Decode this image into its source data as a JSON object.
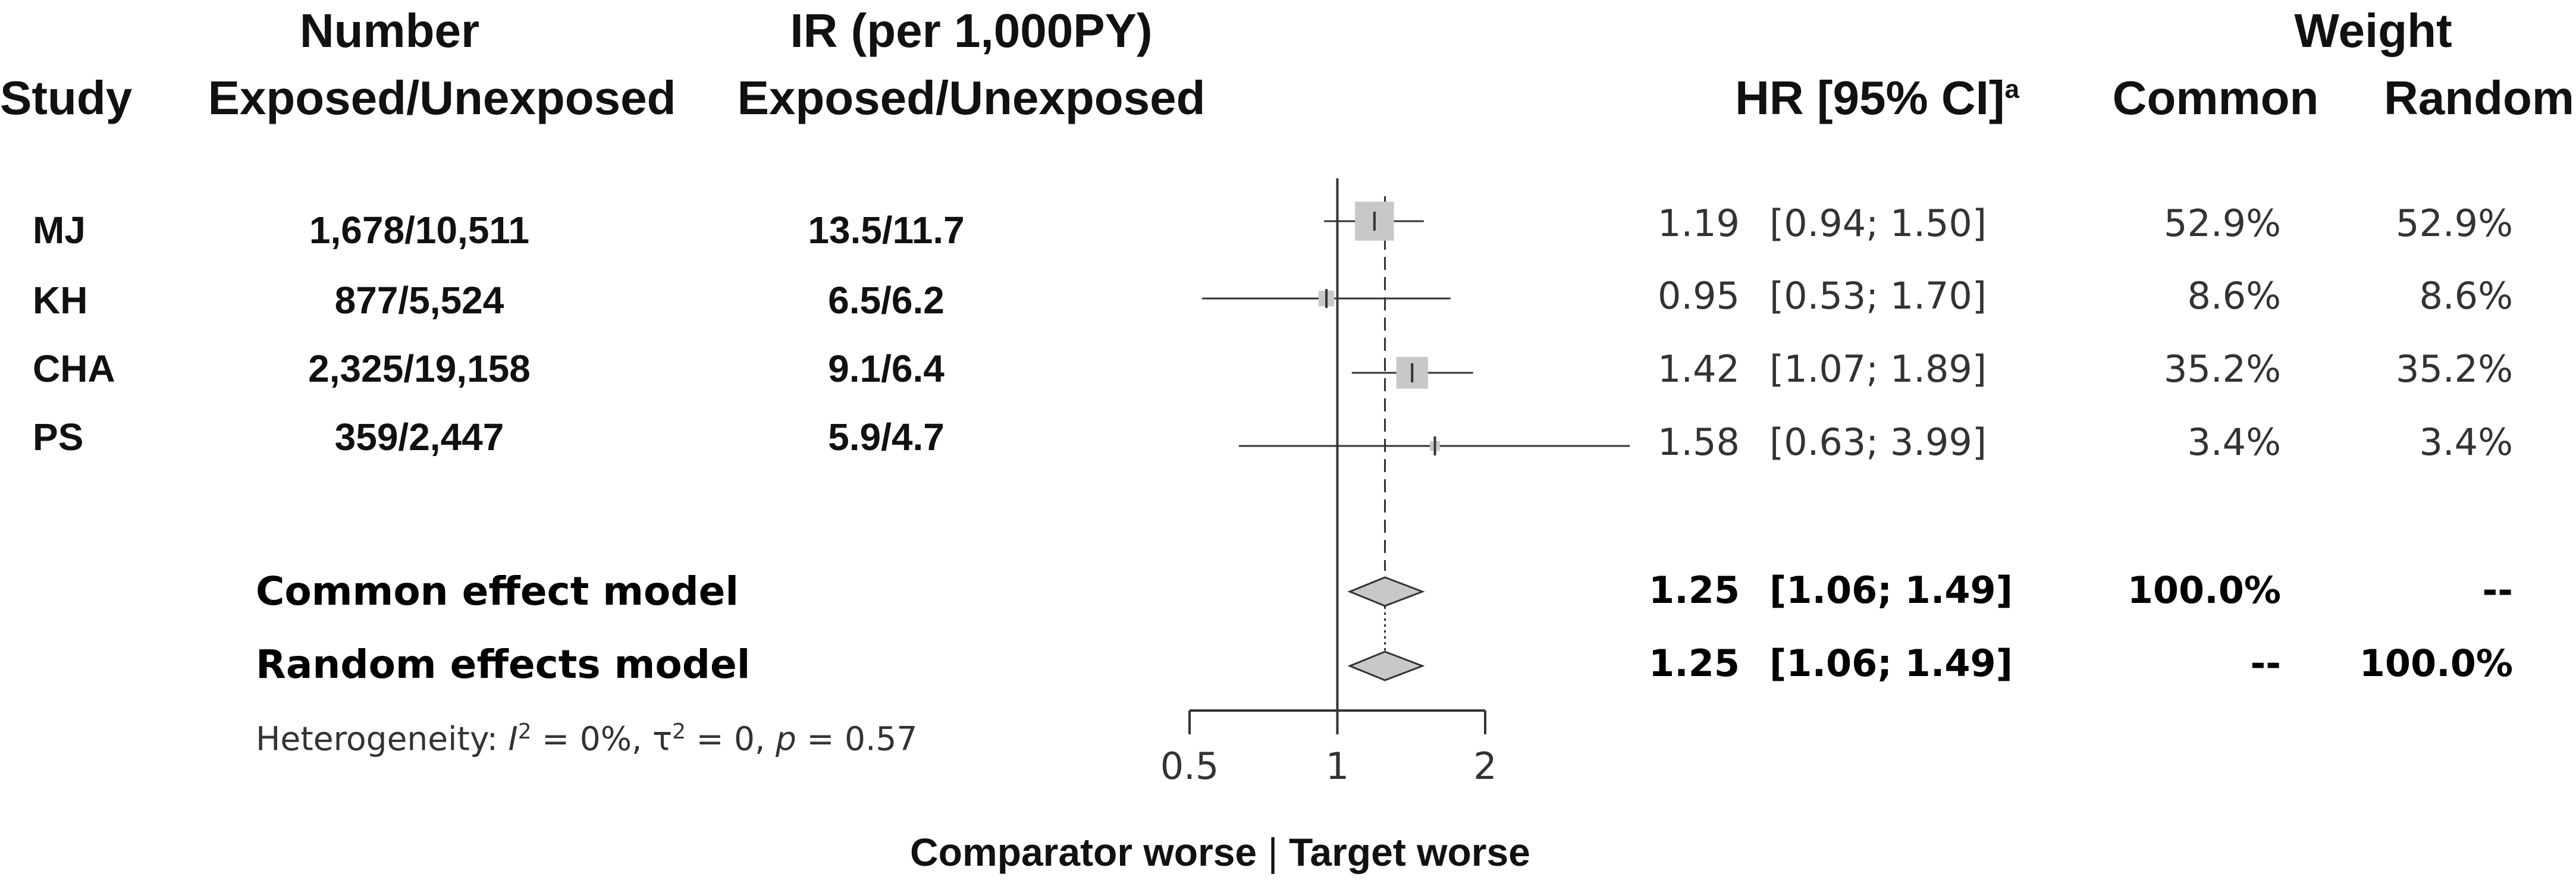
{
  "headers": {
    "study": "Study",
    "number_line1": "Number",
    "number_line2": "Exposed/Unexposed",
    "ir_line1": "IR (per 1,000PY)",
    "ir_line2": "Exposed/Unexposed",
    "hr": "HR [95% CI]",
    "hr_superscript": "a",
    "weight": "Weight",
    "common": "Common",
    "random": "Random"
  },
  "rows": [
    {
      "study": "MJ",
      "number": "1,678/10,511",
      "ir": "13.5/11.7",
      "hr_text": "1.19",
      "ci_text": "[0.94; 1.50]",
      "w_common": "52.9%",
      "w_random": "52.9%"
    },
    {
      "study": "KH",
      "number": "877/5,524",
      "ir": "6.5/6.2",
      "hr_text": "0.95",
      "ci_text": "[0.53; 1.70]",
      "w_common": "8.6%",
      "w_random": "8.6%"
    },
    {
      "study": "CHA",
      "number": "2,325/19,158",
      "ir": "9.1/6.4",
      "hr_text": "1.42",
      "ci_text": "[1.07; 1.89]",
      "w_common": "35.2%",
      "w_random": "35.2%"
    },
    {
      "study": "PS",
      "number": "359/2,447",
      "ir": "5.9/4.7",
      "hr_text": "1.58",
      "ci_text": "[0.63; 3.99]",
      "w_common": "3.4%",
      "w_random": "3.4%"
    }
  ],
  "models": [
    {
      "label": "Common effect model",
      "hr_text": "1.25",
      "ci_text": "[1.06; 1.49]",
      "w_common": "100.0%",
      "w_random": "--"
    },
    {
      "label": "Random effects model",
      "hr_text": "1.25",
      "ci_text": "[1.06; 1.49]",
      "w_common": "--",
      "w_random": "100.0%"
    }
  ],
  "heterogeneity": {
    "prefix": "Heterogeneity: ",
    "i2_symbol": "I",
    "i2_sup": "2",
    "i2_value": " = 0%, ",
    "tau2": "τ",
    "tau2_sup": "2",
    "tau2_value": " = 0, ",
    "p_symbol": "p",
    "p_value": " = 0.57"
  },
  "footer": {
    "left": "Comparator worse",
    "separator": "|",
    "right": "Target worse"
  },
  "chart_data": {
    "type": "forest",
    "x_scale": "log",
    "xlim": [
      0.5,
      2
    ],
    "x_ticks": [
      "0.5",
      "1",
      "2"
    ],
    "x_tick_values": [
      0.5,
      1,
      2
    ],
    "reference_line": 1,
    "pooled_line": 1.25,
    "series": [
      {
        "name": "MJ",
        "hr": 1.19,
        "lower": 0.94,
        "upper": 1.5,
        "weight": 52.9
      },
      {
        "name": "KH",
        "hr": 0.95,
        "lower": 0.53,
        "upper": 1.7,
        "weight": 8.6
      },
      {
        "name": "CHA",
        "hr": 1.42,
        "lower": 1.07,
        "upper": 1.89,
        "weight": 35.2
      },
      {
        "name": "PS",
        "hr": 1.58,
        "lower": 0.63,
        "upper": 3.99,
        "weight": 3.4
      }
    ],
    "pooled": [
      {
        "name": "Common effect model",
        "hr": 1.25,
        "lower": 1.06,
        "upper": 1.49
      },
      {
        "name": "Random effects model",
        "hr": 1.25,
        "lower": 1.06,
        "upper": 1.49
      }
    ],
    "colors": {
      "box": "#c8c8c8",
      "diamond": "#c8c8c8",
      "line": "#333333"
    }
  }
}
